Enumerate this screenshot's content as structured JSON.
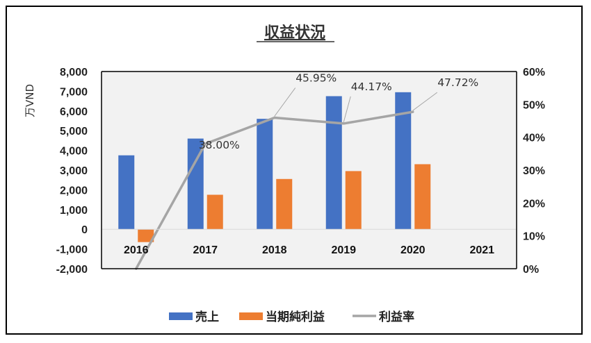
{
  "chart_data": {
    "type": "bar",
    "title": "収益状況",
    "ylabel": "万VND",
    "categories": [
      "2016",
      "2017",
      "2018",
      "2019",
      "2020",
      "2021"
    ],
    "ylim": [
      -2000,
      8000
    ],
    "y_ticks": [
      "8,000",
      "7,000",
      "6,000",
      "5,000",
      "4,000",
      "3,000",
      "2,000",
      "1,000",
      "0",
      "-1,000",
      "-2,000"
    ],
    "y2lim": [
      0,
      60
    ],
    "y2_ticks": [
      "60%",
      "50%",
      "40%",
      "30%",
      "20%",
      "10%",
      "0%"
    ],
    "series": [
      {
        "name": "売上",
        "type": "bar",
        "axis": "left",
        "color": "#4472C4",
        "values": [
          3750,
          4600,
          5600,
          6750,
          6950,
          0
        ]
      },
      {
        "name": "当期純利益",
        "type": "bar",
        "axis": "left",
        "color": "#ED7D31",
        "values": [
          -650,
          1750,
          2550,
          2950,
          3300,
          0
        ]
      },
      {
        "name": "利益率",
        "type": "line",
        "axis": "right",
        "color": "#A5A5A5",
        "values": [
          0,
          38.0,
          45.95,
          44.17,
          47.72,
          null
        ]
      }
    ],
    "data_labels": [
      "38.00%",
      "45.95%",
      "44.17%",
      "47.72%"
    ],
    "grid": false,
    "legend_position": "bottom"
  },
  "legend": [
    {
      "label": "売上",
      "color": "#4472C4",
      "kind": "box"
    },
    {
      "label": "当期純利益",
      "color": "#ED7D31",
      "kind": "box"
    },
    {
      "label": "利益率",
      "color": "#A5A5A5",
      "kind": "line"
    }
  ]
}
